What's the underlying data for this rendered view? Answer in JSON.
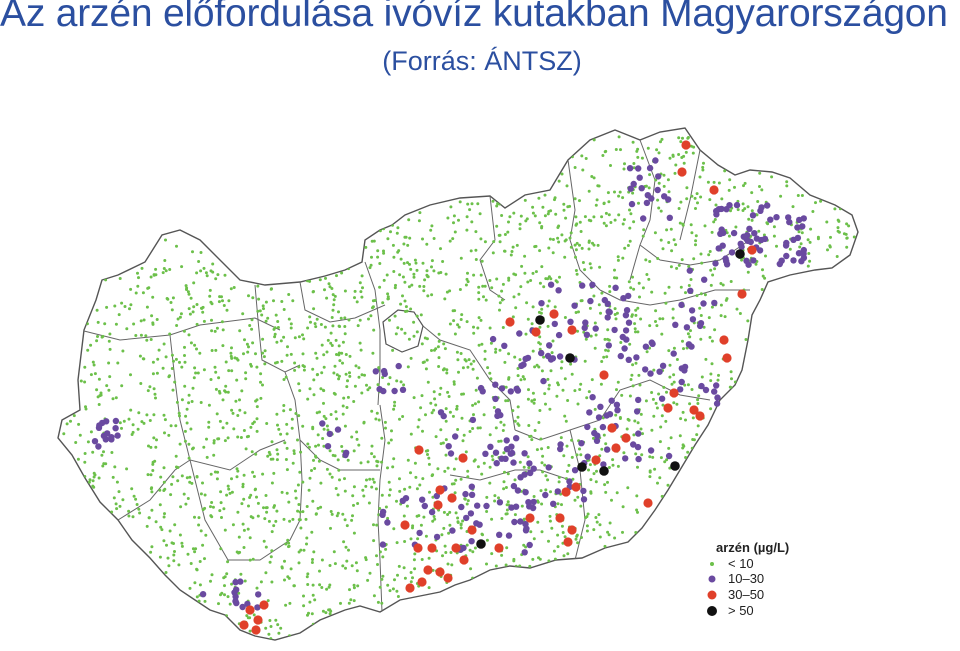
{
  "title": "Az arzén előfordulása ivóvíz kutakban Magyarországon",
  "subtitle": "(Forrás: ÁNTSZ)",
  "legend": {
    "title": "arzén (µg/L)",
    "classes": [
      {
        "label": "< 10",
        "color": "#6cc04a"
      },
      {
        "label": "10–30",
        "color": "#6a4aa0"
      },
      {
        "label": "30–50",
        "color": "#e0402a"
      },
      {
        "label": "> 50",
        "color": "#111111"
      }
    ]
  },
  "colors": {
    "title": "#2b4fa0",
    "country_fill": "#ffffff",
    "border": "#555555"
  }
}
